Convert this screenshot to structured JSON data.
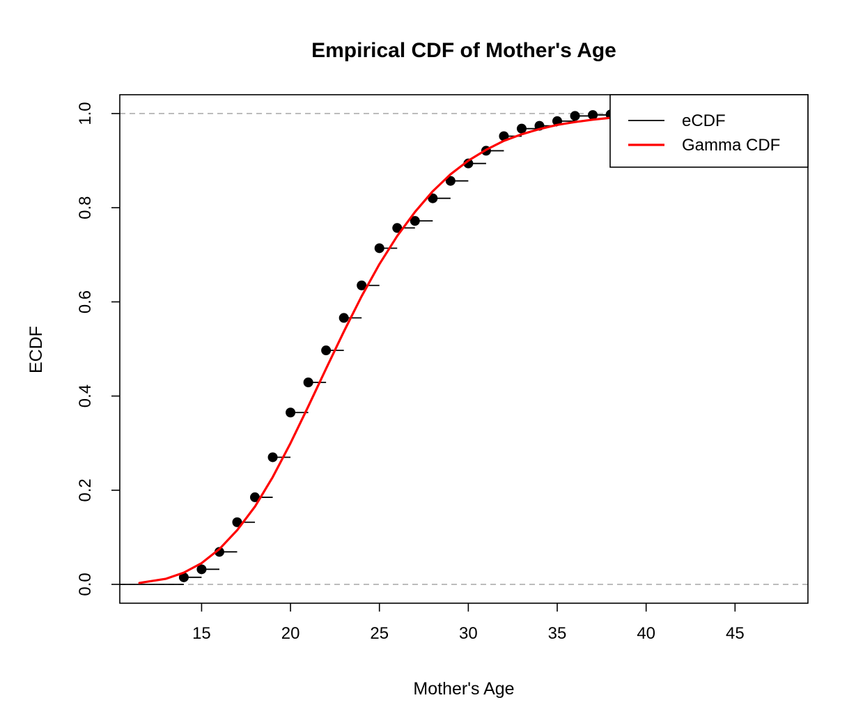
{
  "chart_data": {
    "type": "line",
    "title": "Empirical CDF of Mother's Age",
    "xlabel": "Mother's Age",
    "ylabel": "ECDF",
    "xlim": [
      10.4,
      49.1
    ],
    "ylim": [
      -0.04,
      1.04
    ],
    "x_ticks": [
      15,
      20,
      25,
      30,
      35,
      40,
      45
    ],
    "y_ticks": [
      0.0,
      0.2,
      0.4,
      0.6,
      0.8,
      1.0
    ],
    "x_tick_labels": [
      "15",
      "20",
      "25",
      "30",
      "35",
      "40",
      "45"
    ],
    "y_tick_labels": [
      "0.0",
      "0.2",
      "0.4",
      "0.6",
      "0.8",
      "1.0"
    ],
    "reference_lines": [
      0,
      1
    ],
    "legend_placement": "top-right",
    "series": [
      {
        "name": "eCDF",
        "color": "#000000",
        "style": "step-with-points",
        "x": [
          14,
          15,
          16,
          17,
          18,
          19,
          20,
          21,
          22,
          23,
          24,
          25,
          26,
          27,
          28,
          29,
          30,
          31,
          32,
          33,
          34,
          35,
          36,
          37,
          38,
          39,
          40,
          41
        ],
        "y": [
          0.015,
          0.032,
          0.069,
          0.132,
          0.185,
          0.27,
          0.365,
          0.429,
          0.497,
          0.566,
          0.635,
          0.714,
          0.757,
          0.772,
          0.82,
          0.857,
          0.894,
          0.921,
          0.952,
          0.968,
          0.974,
          0.984,
          0.995,
          0.997,
          0.998,
          0.999,
          0.9995,
          1.0
        ]
      },
      {
        "name": "Gamma CDF",
        "color": "#ff0000",
        "style": "line",
        "x": [
          11.5,
          12,
          13,
          14,
          15,
          16,
          17,
          18,
          19,
          20,
          21,
          22,
          23,
          24,
          25,
          26,
          27,
          28,
          29,
          30,
          31,
          32,
          33,
          34,
          35,
          36,
          37,
          38,
          39,
          40,
          41,
          42,
          43,
          44,
          45,
          46,
          47
        ],
        "y": [
          0.003,
          0.006,
          0.012,
          0.025,
          0.045,
          0.075,
          0.115,
          0.165,
          0.228,
          0.3,
          0.378,
          0.458,
          0.537,
          0.612,
          0.68,
          0.74,
          0.791,
          0.835,
          0.871,
          0.9,
          0.923,
          0.942,
          0.956,
          0.967,
          0.976,
          0.982,
          0.987,
          0.991,
          0.993,
          0.995,
          0.997,
          0.998,
          0.998,
          0.999,
          0.999,
          0.9995,
          0.9997
        ]
      }
    ]
  }
}
